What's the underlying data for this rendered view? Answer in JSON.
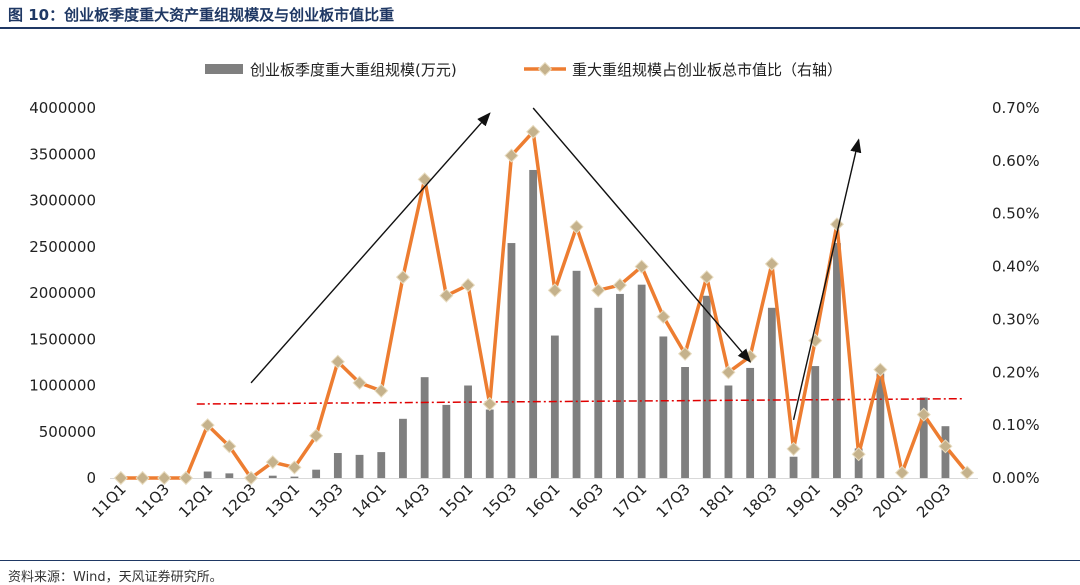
{
  "title": "图 10：创业板季度重大资产重组规模及与创业板市值比重",
  "source": "资料来源：Wind，天风证券研究所。",
  "chart_data": {
    "type": "bar+line",
    "categories": [
      "11Q1",
      "11Q2",
      "11Q3",
      "11Q4",
      "12Q1",
      "12Q2",
      "12Q3",
      "12Q4",
      "13Q1",
      "13Q2",
      "13Q3",
      "13Q4",
      "14Q1",
      "14Q2",
      "14Q3",
      "14Q4",
      "15Q1",
      "15Q2",
      "15Q3",
      "15Q4",
      "16Q1",
      "16Q2",
      "16Q3",
      "16Q4",
      "17Q1",
      "17Q2",
      "17Q3",
      "17Q4",
      "18Q1",
      "18Q2",
      "18Q3",
      "18Q4",
      "19Q1",
      "19Q2",
      "19Q3",
      "19Q4",
      "20Q1",
      "20Q2",
      "20Q3",
      "20Q4"
    ],
    "x_tick_labels": [
      "11Q1",
      "11Q3",
      "12Q1",
      "12Q3",
      "13Q1",
      "13Q3",
      "14Q1",
      "14Q3",
      "15Q1",
      "15Q3",
      "16Q1",
      "16Q3",
      "17Q1",
      "17Q3",
      "18Q1",
      "18Q3",
      "19Q1",
      "19Q3",
      "20Q1",
      "20Q3"
    ],
    "series": [
      {
        "name": "创业板季度重大重组规模(万元)",
        "type": "bar",
        "axis": "left",
        "color": "#7f7f7f",
        "values": [
          0,
          0,
          0,
          0,
          70000,
          50000,
          0,
          25000,
          15000,
          90000,
          270000,
          250000,
          280000,
          640000,
          1090000,
          790000,
          1000000,
          740000,
          2540000,
          3330000,
          1540000,
          2240000,
          1840000,
          1990000,
          2090000,
          1530000,
          1200000,
          1970000,
          1000000,
          1190000,
          1840000,
          230000,
          1210000,
          2540000,
          320000,
          1130000,
          0,
          870000,
          560000,
          0
        ]
      },
      {
        "name": "重大重组规模占创业板总市值比（右轴）",
        "type": "line",
        "axis": "right",
        "color": "#ed7d31",
        "values": [
          0.0,
          0.0,
          0.0,
          0.0,
          0.1,
          0.06,
          0.0,
          0.03,
          0.02,
          0.08,
          0.22,
          0.18,
          0.165,
          0.38,
          0.565,
          0.345,
          0.365,
          0.14,
          0.61,
          0.655,
          0.355,
          0.475,
          0.355,
          0.365,
          0.4,
          0.305,
          0.235,
          0.38,
          0.2,
          0.23,
          0.405,
          0.055,
          0.26,
          0.48,
          0.045,
          0.205,
          0.01,
          0.12,
          0.06,
          0.01
        ]
      }
    ],
    "left_axis": {
      "ylim": [
        0,
        4000000
      ],
      "ticks": [
        "0",
        "500000",
        "1000000",
        "1500000",
        "2000000",
        "2500000",
        "3000000",
        "3500000",
        "4000000"
      ]
    },
    "right_axis": {
      "ylim": [
        0,
        0.7
      ],
      "ticks": [
        "0.00%",
        "0.10%",
        "0.20%",
        "0.30%",
        "0.40%",
        "0.50%",
        "0.60%",
        "0.70%"
      ]
    },
    "average_line": {
      "start_value": 0.14,
      "end_value": 0.15,
      "axis": "right",
      "color": "#e00000",
      "style": "dash-dot"
    },
    "arrows": [
      {
        "from": [
          "12Q3",
          0.18
        ],
        "to": [
          "15Q2",
          0.69
        ]
      },
      {
        "from": [
          "15Q4",
          0.7
        ],
        "to": [
          "18Q2",
          0.22
        ]
      },
      {
        "from": [
          "18Q4",
          0.11
        ],
        "to": [
          "19Q3",
          0.64
        ]
      }
    ],
    "legend_position": "top-center",
    "grid": false
  }
}
